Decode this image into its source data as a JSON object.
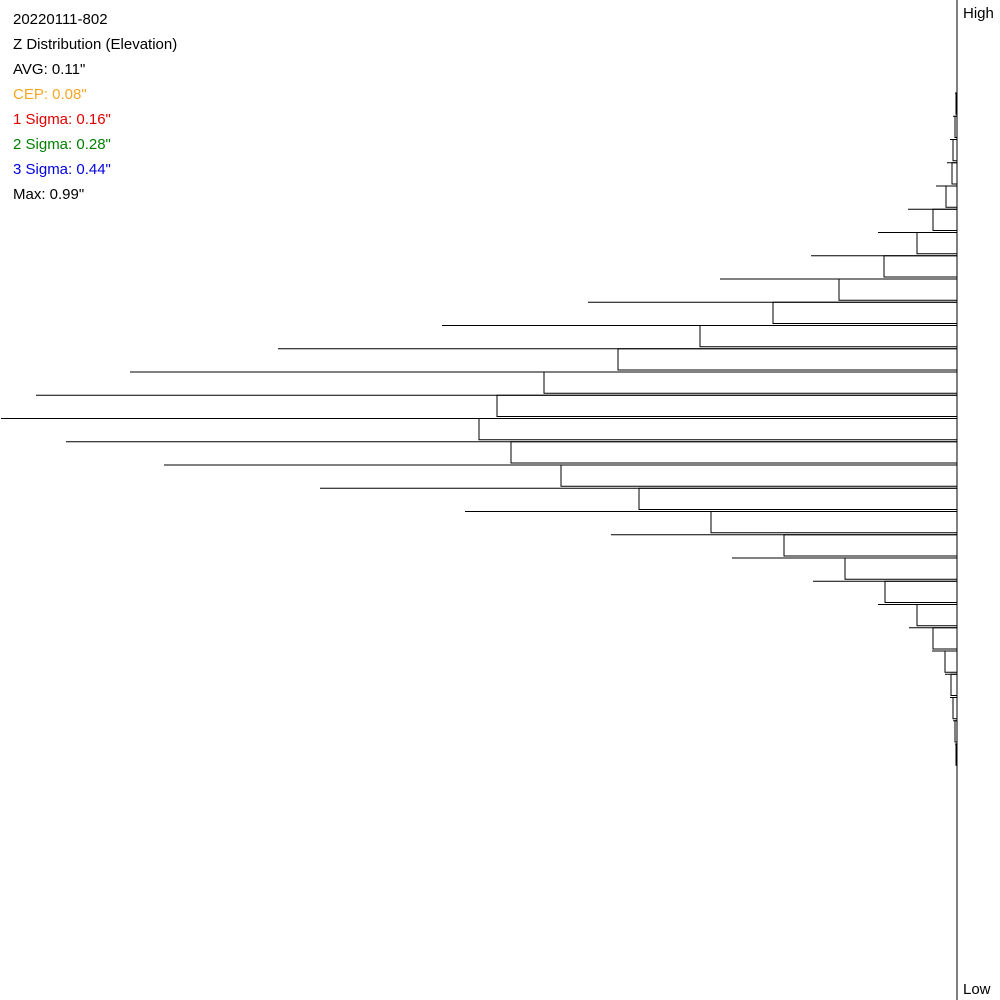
{
  "chart_data": {
    "type": "bar",
    "orientation": "horizontal",
    "title": "20220111-802",
    "subtitle": "Z Distribution (Elevation)",
    "annotations": [
      {
        "text": "AVG: 0.11\"",
        "color": "#000000"
      },
      {
        "text": "CEP: 0.08\"",
        "color": "#f5a623"
      },
      {
        "text": "1 Sigma: 0.16\"",
        "color": "#e00000"
      },
      {
        "text": "2 Sigma: 0.28\"",
        "color": "#008000"
      },
      {
        "text": "3 Sigma: 0.44\"",
        "color": "#0000e0"
      },
      {
        "text": "Max: 0.99\"",
        "color": "#000000"
      }
    ],
    "y_top_label": "High",
    "y_bottom_label": "Low",
    "categories": [
      null,
      null,
      null,
      null,
      null,
      null,
      null,
      null,
      null,
      null,
      null,
      null,
      null,
      null,
      null,
      null,
      null,
      null,
      null,
      null,
      null,
      null,
      null,
      null,
      null,
      null,
      null,
      null,
      null
    ],
    "series": [
      {
        "color": "#000000",
        "values": [
          2,
          4,
          7,
          10,
          21,
          49,
          79,
          146,
          237,
          369,
          515,
          679,
          827,
          921,
          956,
          891,
          793,
          637,
          492,
          346,
          225,
          144,
          79,
          48,
          25,
          12,
          7,
          4,
          2
        ]
      },
      {
        "color": "#000000",
        "values": [
          1,
          2,
          4,
          5,
          11,
          24,
          40,
          73,
          118,
          184,
          257,
          339,
          413,
          460,
          478,
          446,
          396,
          318,
          246,
          173,
          112,
          72,
          40,
          24,
          12,
          6,
          4,
          2,
          1
        ]
      }
    ],
    "xlim": [
      0,
      956
    ]
  }
}
